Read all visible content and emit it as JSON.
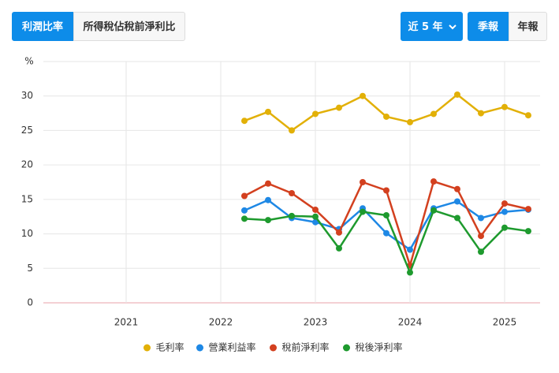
{
  "ui": {
    "tabs": [
      "利潤比率",
      "所得稅佔稅前淨利比"
    ],
    "range": "近 5 年",
    "periods": [
      "季報",
      "年報"
    ]
  },
  "chart_data": {
    "type": "line",
    "y_label": "%",
    "x": [
      2022.25,
      2022.5,
      2022.75,
      2023,
      2023.25,
      2023.5,
      2023.75,
      2024,
      2024.25,
      2024.5,
      2024.75,
      2025,
      2025.25
    ],
    "xlim": [
      2020.125,
      2025.375
    ],
    "xticks": [
      2021,
      2022,
      2023,
      2024,
      2025
    ],
    "ylim": [
      0,
      35
    ],
    "yticks": [
      0,
      5,
      10,
      15,
      20,
      25,
      30
    ],
    "grid": true,
    "series": [
      {
        "name": "毛利率",
        "color": "#e2b007",
        "values": [
          26.4,
          27.7,
          25.0,
          27.4,
          28.3,
          30.0,
          27.0,
          26.2,
          27.4,
          30.2,
          27.5,
          28.4,
          27.2
        ]
      },
      {
        "name": "營業利益率",
        "color": "#1e88e5",
        "values": [
          13.4,
          14.9,
          12.3,
          11.7,
          10.7,
          13.7,
          10.1,
          7.7,
          13.7,
          14.7,
          12.3,
          13.2,
          13.5
        ]
      },
      {
        "name": "稅前淨利率",
        "color": "#d3401f",
        "values": [
          15.5,
          17.3,
          15.9,
          13.5,
          10.2,
          17.5,
          16.3,
          5.4,
          17.6,
          16.5,
          9.7,
          14.4,
          13.6
        ]
      },
      {
        "name": "稅後淨利率",
        "color": "#1e9a2e",
        "values": [
          12.2,
          12.0,
          12.6,
          12.5,
          7.9,
          13.2,
          12.7,
          4.4,
          13.4,
          12.3,
          7.4,
          10.9,
          10.4
        ]
      }
    ]
  }
}
